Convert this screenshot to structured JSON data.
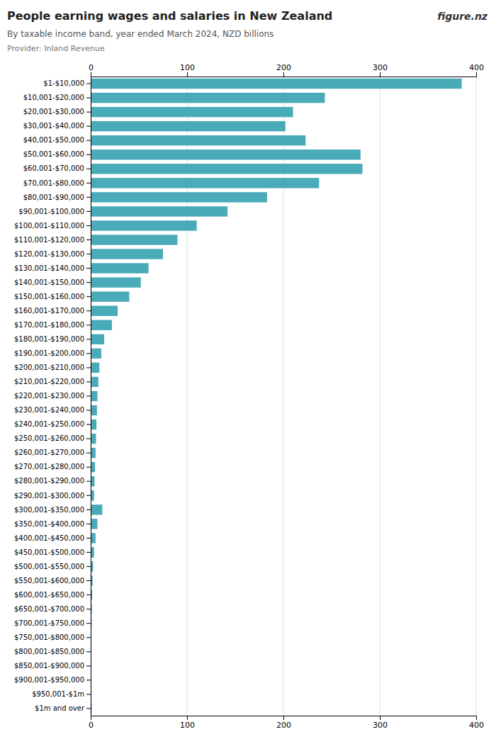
{
  "chart_data": {
    "type": "bar",
    "orientation": "horizontal",
    "title": "People earning wages and salaries in New Zealand",
    "subtitle": "By taxable income band, year ended March 2024, NZD billions",
    "annotations": [
      "Provider: Inland Revenue",
      "figure.nz"
    ],
    "categories": [
      "$1-$10,000",
      "$10,001-$20,000",
      "$20,001-$30,000",
      "$30,001-$40,000",
      "$40,001-$50,000",
      "$50,001-$60,000",
      "$60,001-$70,000",
      "$70,001-$80,000",
      "$80,001-$90,000",
      "$90,001-$100,000",
      "$100,001-$110,000",
      "$110,001-$120,000",
      "$120,001-$130,000",
      "$130,001-$140,000",
      "$140,001-$150,000",
      "$150,001-$160,000",
      "$160,001-$170,000",
      "$170,001-$180,000",
      "$180,001-$190,000",
      "$190,001-$200,000",
      "$200,001-$210,000",
      "$210,001-$220,000",
      "$220,001-$230,000",
      "$230,001-$240,000",
      "$240,001-$250,000",
      "$250,001-$260,000",
      "$260,001-$270,000",
      "$270,001-$280,000",
      "$280,001-$290,000",
      "$290,001-$300,000",
      "$300,001-$350,000",
      "$350,001-$400,000",
      "$400,001-$450,000",
      "$450,001-$500,000",
      "$500,001-$550,000",
      "$550,001-$600,000",
      "$600,001-$650,000",
      "$650,001-$700,000",
      "$700,001-$750,000",
      "$750,001-$800,000",
      "$800,001-$850,000",
      "$850,001-$900,000",
      "$900,001-$950,000",
      "$950,001-$1m",
      "$1m and over"
    ],
    "values": [
      385,
      243,
      210,
      202,
      223,
      280,
      282,
      237,
      183,
      142,
      110,
      90,
      75,
      60,
      52,
      40,
      28,
      22,
      14,
      11,
      9,
      8,
      7,
      6.5,
      6,
      5.5,
      5,
      4.5,
      4,
      3.5,
      12,
      7,
      5,
      3.5,
      2.5,
      2.0,
      1.5,
      1.2,
      1.0,
      0.8,
      0.6,
      0.5,
      0.4,
      0.3,
      1.0
    ],
    "color": "#4AABB8",
    "xlim": [
      0,
      400
    ],
    "xticks": [
      0,
      100,
      200,
      300,
      400
    ],
    "grid": true
  }
}
